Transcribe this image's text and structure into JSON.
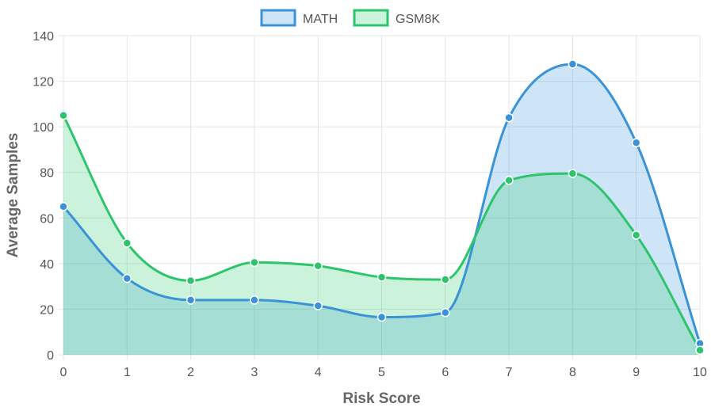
{
  "chart_data": {
    "type": "area",
    "x": [
      0,
      1,
      2,
      3,
      4,
      5,
      6,
      7,
      8,
      9,
      10
    ],
    "xlabel": "Risk Score",
    "ylabel": "Average Samples",
    "ylim": [
      0,
      140
    ],
    "xlim": [
      0,
      10
    ],
    "yticks": [
      0,
      20,
      40,
      60,
      80,
      100,
      120,
      140
    ],
    "xticks": [
      0,
      1,
      2,
      3,
      4,
      5,
      6,
      7,
      8,
      9,
      10
    ],
    "grid": true,
    "legend_position": "top-center",
    "series": [
      {
        "name": "MATH",
        "values": [
          65,
          33.5,
          24,
          24,
          21.5,
          16.5,
          18.5,
          104,
          127.5,
          93,
          5
        ],
        "line_color": "#3a93d6",
        "fill_color": "rgba(54, 150, 225, 0.25)"
      },
      {
        "name": "GSM8K",
        "values": [
          105,
          49,
          32.5,
          40.5,
          39,
          34,
          33,
          76.5,
          79.5,
          52.5,
          2
        ],
        "line_color": "#2ec46c",
        "fill_color": "rgba(46, 204, 113, 0.25)"
      }
    ]
  }
}
